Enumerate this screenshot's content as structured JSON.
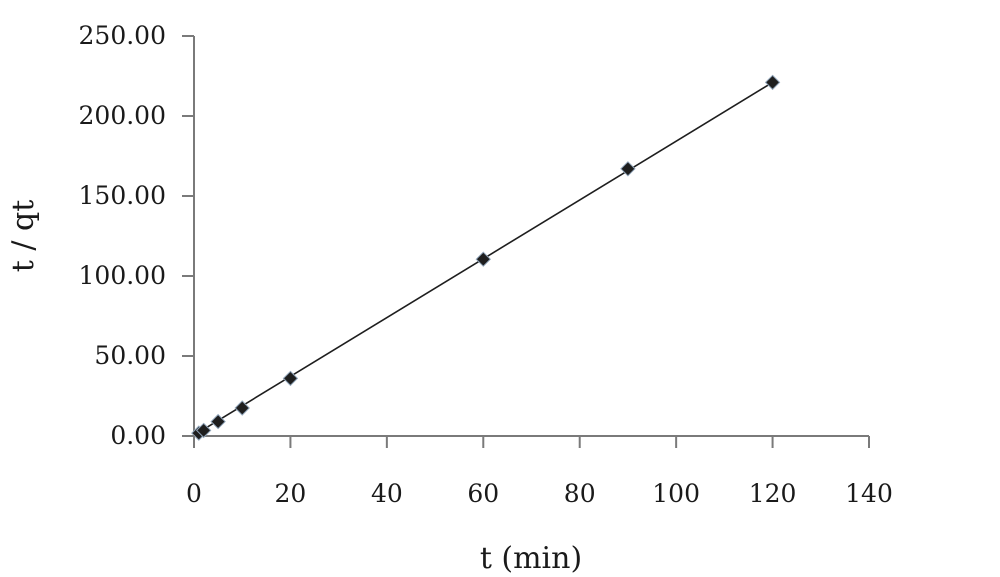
{
  "chart_data": {
    "type": "scatter",
    "title": "",
    "xlabel": "t (min)",
    "ylabel": "t / qt",
    "xlim": [
      0,
      140
    ],
    "ylim": [
      0,
      250
    ],
    "x_ticks": [
      "0",
      "20",
      "40",
      "60",
      "80",
      "100",
      "120",
      "140"
    ],
    "y_ticks": [
      "0.00",
      "50.00",
      "100.00",
      "150.00",
      "200.00",
      "250.00"
    ],
    "grid": false,
    "legend": "none",
    "series": [
      {
        "x": [
          1,
          2,
          5,
          10,
          20,
          60,
          90,
          120
        ],
        "y": [
          1.8,
          3.5,
          9.0,
          17.5,
          36.0,
          110.5,
          167.0,
          221.0
        ],
        "marker": "diamond",
        "color": "#1e1e1e"
      }
    ],
    "trendline": {
      "type": "linear",
      "x": [
        0,
        120
      ],
      "y": [
        0.5,
        221.0
      ],
      "color": "#1e1e1e"
    }
  }
}
